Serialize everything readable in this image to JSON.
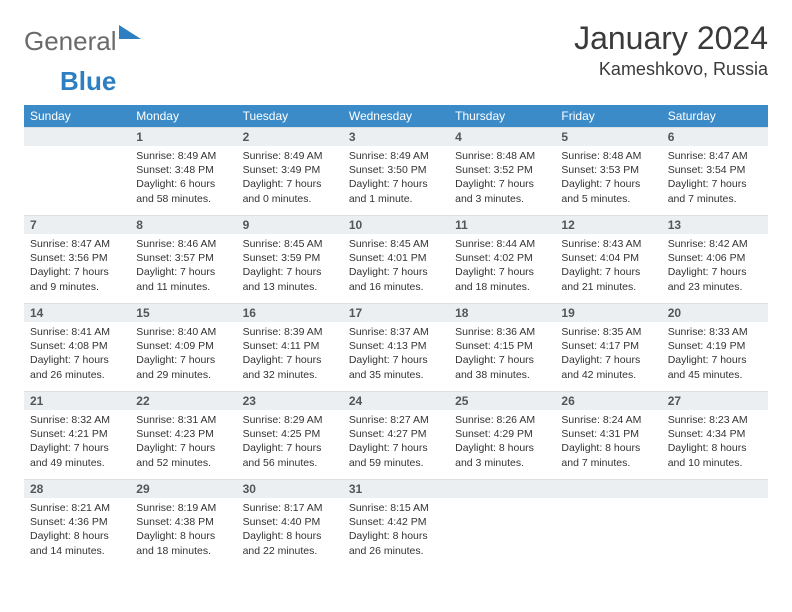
{
  "brand": {
    "part1": "General",
    "part2": "Blue"
  },
  "title": "January 2024",
  "location": "Kameshkovo, Russia",
  "colors": {
    "header_bg": "#3b8bc9",
    "header_text": "#ffffff",
    "daynum_bg": "#eceff1",
    "text": "#333333",
    "logo_gray": "#6a6a6a",
    "logo_blue": "#2d7fc1"
  },
  "weekdays": [
    "Sunday",
    "Monday",
    "Tuesday",
    "Wednesday",
    "Thursday",
    "Friday",
    "Saturday"
  ],
  "start_dow": 1,
  "days_in_month": 31,
  "days": {
    "1": {
      "sunrise": "8:49 AM",
      "sunset": "3:48 PM",
      "daylight": "6 hours and 58 minutes."
    },
    "2": {
      "sunrise": "8:49 AM",
      "sunset": "3:49 PM",
      "daylight": "7 hours and 0 minutes."
    },
    "3": {
      "sunrise": "8:49 AM",
      "sunset": "3:50 PM",
      "daylight": "7 hours and 1 minute."
    },
    "4": {
      "sunrise": "8:48 AM",
      "sunset": "3:52 PM",
      "daylight": "7 hours and 3 minutes."
    },
    "5": {
      "sunrise": "8:48 AM",
      "sunset": "3:53 PM",
      "daylight": "7 hours and 5 minutes."
    },
    "6": {
      "sunrise": "8:47 AM",
      "sunset": "3:54 PM",
      "daylight": "7 hours and 7 minutes."
    },
    "7": {
      "sunrise": "8:47 AM",
      "sunset": "3:56 PM",
      "daylight": "7 hours and 9 minutes."
    },
    "8": {
      "sunrise": "8:46 AM",
      "sunset": "3:57 PM",
      "daylight": "7 hours and 11 minutes."
    },
    "9": {
      "sunrise": "8:45 AM",
      "sunset": "3:59 PM",
      "daylight": "7 hours and 13 minutes."
    },
    "10": {
      "sunrise": "8:45 AM",
      "sunset": "4:01 PM",
      "daylight": "7 hours and 16 minutes."
    },
    "11": {
      "sunrise": "8:44 AM",
      "sunset": "4:02 PM",
      "daylight": "7 hours and 18 minutes."
    },
    "12": {
      "sunrise": "8:43 AM",
      "sunset": "4:04 PM",
      "daylight": "7 hours and 21 minutes."
    },
    "13": {
      "sunrise": "8:42 AM",
      "sunset": "4:06 PM",
      "daylight": "7 hours and 23 minutes."
    },
    "14": {
      "sunrise": "8:41 AM",
      "sunset": "4:08 PM",
      "daylight": "7 hours and 26 minutes."
    },
    "15": {
      "sunrise": "8:40 AM",
      "sunset": "4:09 PM",
      "daylight": "7 hours and 29 minutes."
    },
    "16": {
      "sunrise": "8:39 AM",
      "sunset": "4:11 PM",
      "daylight": "7 hours and 32 minutes."
    },
    "17": {
      "sunrise": "8:37 AM",
      "sunset": "4:13 PM",
      "daylight": "7 hours and 35 minutes."
    },
    "18": {
      "sunrise": "8:36 AM",
      "sunset": "4:15 PM",
      "daylight": "7 hours and 38 minutes."
    },
    "19": {
      "sunrise": "8:35 AM",
      "sunset": "4:17 PM",
      "daylight": "7 hours and 42 minutes."
    },
    "20": {
      "sunrise": "8:33 AM",
      "sunset": "4:19 PM",
      "daylight": "7 hours and 45 minutes."
    },
    "21": {
      "sunrise": "8:32 AM",
      "sunset": "4:21 PM",
      "daylight": "7 hours and 49 minutes."
    },
    "22": {
      "sunrise": "8:31 AM",
      "sunset": "4:23 PM",
      "daylight": "7 hours and 52 minutes."
    },
    "23": {
      "sunrise": "8:29 AM",
      "sunset": "4:25 PM",
      "daylight": "7 hours and 56 minutes."
    },
    "24": {
      "sunrise": "8:27 AM",
      "sunset": "4:27 PM",
      "daylight": "7 hours and 59 minutes."
    },
    "25": {
      "sunrise": "8:26 AM",
      "sunset": "4:29 PM",
      "daylight": "8 hours and 3 minutes."
    },
    "26": {
      "sunrise": "8:24 AM",
      "sunset": "4:31 PM",
      "daylight": "8 hours and 7 minutes."
    },
    "27": {
      "sunrise": "8:23 AM",
      "sunset": "4:34 PM",
      "daylight": "8 hours and 10 minutes."
    },
    "28": {
      "sunrise": "8:21 AM",
      "sunset": "4:36 PM",
      "daylight": "8 hours and 14 minutes."
    },
    "29": {
      "sunrise": "8:19 AM",
      "sunset": "4:38 PM",
      "daylight": "8 hours and 18 minutes."
    },
    "30": {
      "sunrise": "8:17 AM",
      "sunset": "4:40 PM",
      "daylight": "8 hours and 22 minutes."
    },
    "31": {
      "sunrise": "8:15 AM",
      "sunset": "4:42 PM",
      "daylight": "8 hours and 26 minutes."
    }
  },
  "labels": {
    "sunrise": "Sunrise:",
    "sunset": "Sunset:",
    "daylight": "Daylight:"
  }
}
